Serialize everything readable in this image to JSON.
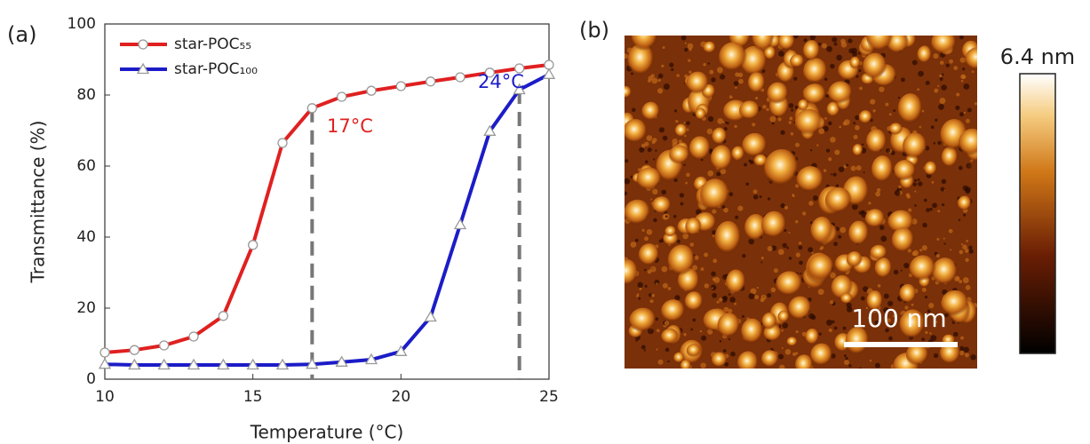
{
  "chart_data": {
    "type": "line",
    "panel_label": "(a)",
    "x_label": "Temperature (°C)",
    "y_label": "Transmittance (%)",
    "x": [
      10,
      11,
      12,
      13,
      14,
      15,
      16,
      17,
      18,
      19,
      20,
      21,
      22,
      23,
      24,
      25
    ],
    "series": [
      {
        "name": "star-POC₅₅",
        "color": "#e02020",
        "marker": "circle",
        "values": [
          7.5,
          8.2,
          9.5,
          12,
          17.8,
          37.8,
          66.5,
          76.3,
          79.5,
          81.2,
          82.5,
          83.8,
          85,
          86.3,
          87.5,
          88.5
        ]
      },
      {
        "name": "star-POC₁₀₀",
        "color": "#1c1cc8",
        "marker": "triangle",
        "values": [
          4.2,
          4,
          4,
          4,
          4,
          4,
          4,
          4.2,
          4.8,
          5.5,
          7.8,
          17.5,
          43.5,
          69.8,
          81.5,
          85.8
        ]
      }
    ],
    "annotations": [
      {
        "text": "17°C",
        "x": 17.5,
        "y": 71,
        "color": "#e02020"
      },
      {
        "text": "24°C",
        "x": 22.6,
        "y": 83.5,
        "color": "#1c1cc8"
      }
    ],
    "dashed_lines": [
      {
        "x": 17,
        "y": 76.3
      },
      {
        "x": 24,
        "y": 81.5
      }
    ],
    "xlim": [
      10,
      25
    ],
    "xticks": [
      10,
      15,
      20,
      25
    ],
    "ylim": [
      0,
      100
    ],
    "yticks": [
      0,
      20,
      40,
      60,
      80,
      100
    ],
    "legend": "upper left"
  },
  "image": {
    "panel_label": "(b)",
    "scale_bar": "100 nm",
    "colorbar_max": "6.4 nm"
  }
}
